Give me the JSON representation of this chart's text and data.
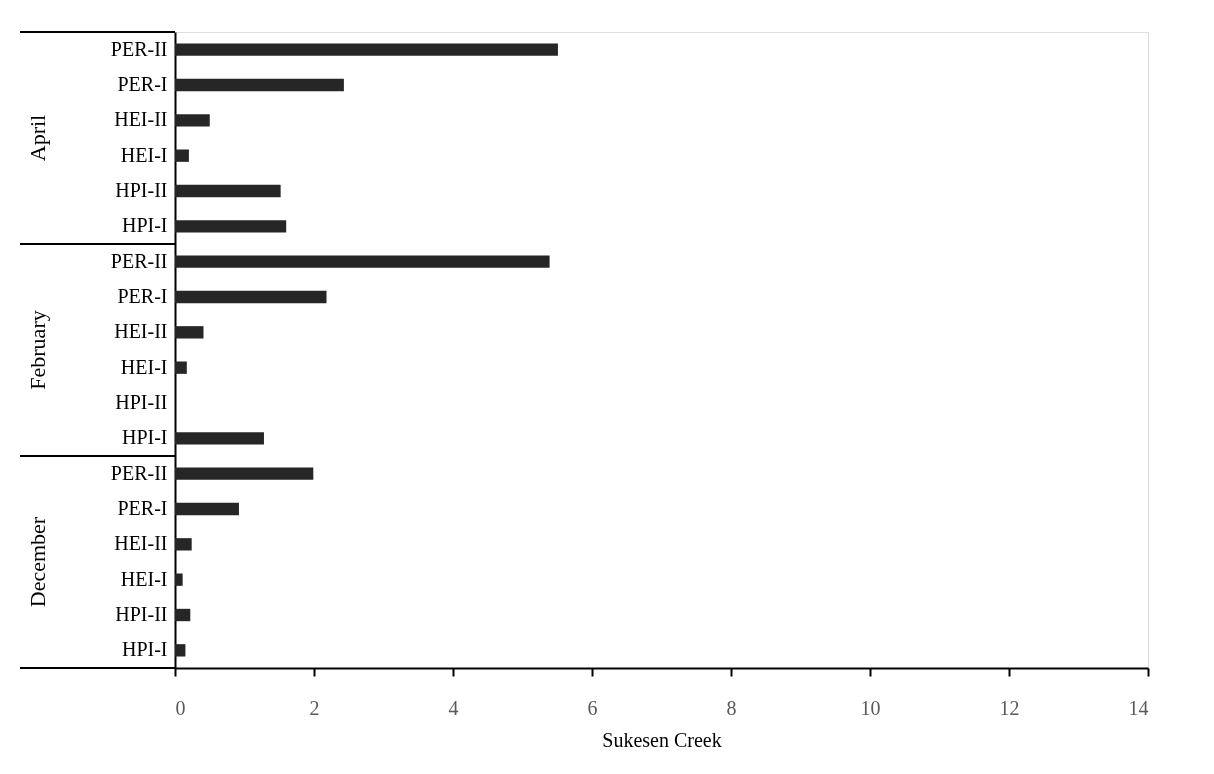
{
  "chart_data": {
    "type": "bar",
    "orientation": "horizontal",
    "categories": [
      "PER-II",
      "PER-I",
      "HEI-II",
      "HEI-I",
      "HPI-II",
      "HPI-I",
      "PER-II",
      "PER-I",
      "HEI-II",
      "HEI-I",
      "HPI-II",
      "HPI-I",
      "PER-II",
      "PER-I",
      "HEI-II",
      "HEI-I",
      "HPI-II",
      "HPI-I"
    ],
    "values": [
      5.51,
      2.43,
      0.5,
      0.2,
      1.52,
      1.6,
      5.39,
      2.18,
      0.41,
      0.17,
      0,
      1.28,
      1.99,
      0.92,
      0.24,
      0.11,
      0.22,
      0.15
    ],
    "color": "#262626",
    "xlim": [
      0,
      14
    ],
    "xticks": [
      0,
      2,
      4,
      6,
      8,
      10,
      12,
      14
    ],
    "xlabel": "Sukesen Creek",
    "annotations": [
      "April",
      "February",
      "December"
    ],
    "grid": false
  }
}
